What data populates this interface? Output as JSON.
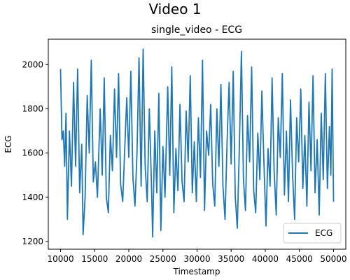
{
  "figure_title": "Video 1",
  "chart_data": {
    "type": "line",
    "title": "single_video - ECG",
    "xlabel": "Timestamp",
    "ylabel": "ECG",
    "xlim": [
      8200,
      51800
    ],
    "ylim": [
      1165,
      2115
    ],
    "x_ticks": [
      10000,
      15000,
      20000,
      25000,
      30000,
      35000,
      40000,
      45000,
      50000
    ],
    "y_ticks": [
      1200,
      1400,
      1600,
      1800,
      2000
    ],
    "grid": false,
    "legend": {
      "position": "lower-right",
      "entries": [
        "ECG"
      ]
    },
    "series": [
      {
        "name": "ECG",
        "color": "#1f77b4",
        "points": [
          [
            10000,
            1980
          ],
          [
            10200,
            1660
          ],
          [
            10400,
            1700
          ],
          [
            10600,
            1540
          ],
          [
            10800,
            1780
          ],
          [
            11000,
            1300
          ],
          [
            11300,
            1700
          ],
          [
            11600,
            1450
          ],
          [
            11900,
            1920
          ],
          [
            12200,
            1540
          ],
          [
            12500,
            1980
          ],
          [
            12800,
            1420
          ],
          [
            13100,
            1640
          ],
          [
            13300,
            1230
          ],
          [
            13600,
            1400
          ],
          [
            13900,
            1860
          ],
          [
            14200,
            1600
          ],
          [
            14500,
            2020
          ],
          [
            14800,
            1470
          ],
          [
            15100,
            1560
          ],
          [
            15400,
            1400
          ],
          [
            15800,
            1800
          ],
          [
            16100,
            1500
          ],
          [
            16400,
            1940
          ],
          [
            16700,
            1400
          ],
          [
            17000,
            1330
          ],
          [
            17300,
            1680
          ],
          [
            17600,
            1520
          ],
          [
            17900,
            1890
          ],
          [
            18200,
            1580
          ],
          [
            18500,
            1960
          ],
          [
            18800,
            1460
          ],
          [
            19100,
            1380
          ],
          [
            19400,
            1620
          ],
          [
            19700,
            1850
          ],
          [
            20000,
            1580
          ],
          [
            20300,
            1970
          ],
          [
            20600,
            1490
          ],
          [
            20900,
            1360
          ],
          [
            21200,
            1600
          ],
          [
            21500,
            2030
          ],
          [
            21800,
            1450
          ],
          [
            22100,
            2070
          ],
          [
            22400,
            1540
          ],
          [
            22700,
            1380
          ],
          [
            23000,
            1800
          ],
          [
            23300,
            1480
          ],
          [
            23500,
            1220
          ],
          [
            23800,
            1700
          ],
          [
            24100,
            1420
          ],
          [
            24400,
            1870
          ],
          [
            24700,
            1250
          ],
          [
            25000,
            1630
          ],
          [
            25300,
            1400
          ],
          [
            25700,
            1900
          ],
          [
            26000,
            1500
          ],
          [
            26300,
            1990
          ],
          [
            26600,
            1330
          ],
          [
            26900,
            1620
          ],
          [
            27200,
            1430
          ],
          [
            27500,
            1820
          ],
          [
            27800,
            1470
          ],
          [
            28100,
            1380
          ],
          [
            28400,
            1790
          ],
          [
            28700,
            1560
          ],
          [
            29000,
            1950
          ],
          [
            29300,
            1420
          ],
          [
            29600,
            1650
          ],
          [
            29900,
            1380
          ],
          [
            30200,
            1760
          ],
          [
            30500,
            1490
          ],
          [
            30800,
            2020
          ],
          [
            31100,
            1340
          ],
          [
            31400,
            1700
          ],
          [
            31700,
            1590
          ],
          [
            32000,
            1820
          ],
          [
            32300,
            1460
          ],
          [
            32600,
            1360
          ],
          [
            32900,
            1800
          ],
          [
            33200,
            1540
          ],
          [
            33500,
            1910
          ],
          [
            33800,
            1450
          ],
          [
            34100,
            1300
          ],
          [
            34400,
            1650
          ],
          [
            34700,
            1920
          ],
          [
            35000,
            1550
          ],
          [
            35300,
            1970
          ],
          [
            35600,
            1400
          ],
          [
            35900,
            1260
          ],
          [
            36200,
            1620
          ],
          [
            36500,
            2060
          ],
          [
            36800,
            1480
          ],
          [
            37100,
            1340
          ],
          [
            37400,
            1770
          ],
          [
            37700,
            1560
          ],
          [
            38000,
            1990
          ],
          [
            38300,
            1430
          ],
          [
            38600,
            1330
          ],
          [
            38900,
            1690
          ],
          [
            39200,
            1480
          ],
          [
            39500,
            1880
          ],
          [
            39800,
            1560
          ],
          [
            40100,
            1270
          ],
          [
            40400,
            1620
          ],
          [
            40700,
            1450
          ],
          [
            41000,
            1940
          ],
          [
            41300,
            1520
          ],
          [
            41600,
            1320
          ],
          [
            41900,
            1760
          ],
          [
            42200,
            1580
          ],
          [
            42500,
            1960
          ],
          [
            42800,
            1410
          ],
          [
            43100,
            1700
          ],
          [
            43400,
            1380
          ],
          [
            43700,
            1840
          ],
          [
            44000,
            1500
          ],
          [
            44300,
            1300
          ],
          [
            44600,
            1760
          ],
          [
            44900,
            1560
          ],
          [
            45200,
            1890
          ],
          [
            45500,
            1440
          ],
          [
            45800,
            1680
          ],
          [
            46100,
            1360
          ],
          [
            46400,
            1830
          ],
          [
            46700,
            1520
          ],
          [
            47000,
            1950
          ],
          [
            47300,
            1420
          ],
          [
            47600,
            1660
          ],
          [
            47900,
            1320
          ],
          [
            48200,
            1780
          ],
          [
            48500,
            1480
          ],
          [
            48800,
            1960
          ],
          [
            49100,
            1440
          ],
          [
            49400,
            1720
          ],
          [
            49600,
            1500
          ],
          [
            49800,
            1980
          ],
          [
            50000,
            1380
          ]
        ]
      }
    ]
  }
}
